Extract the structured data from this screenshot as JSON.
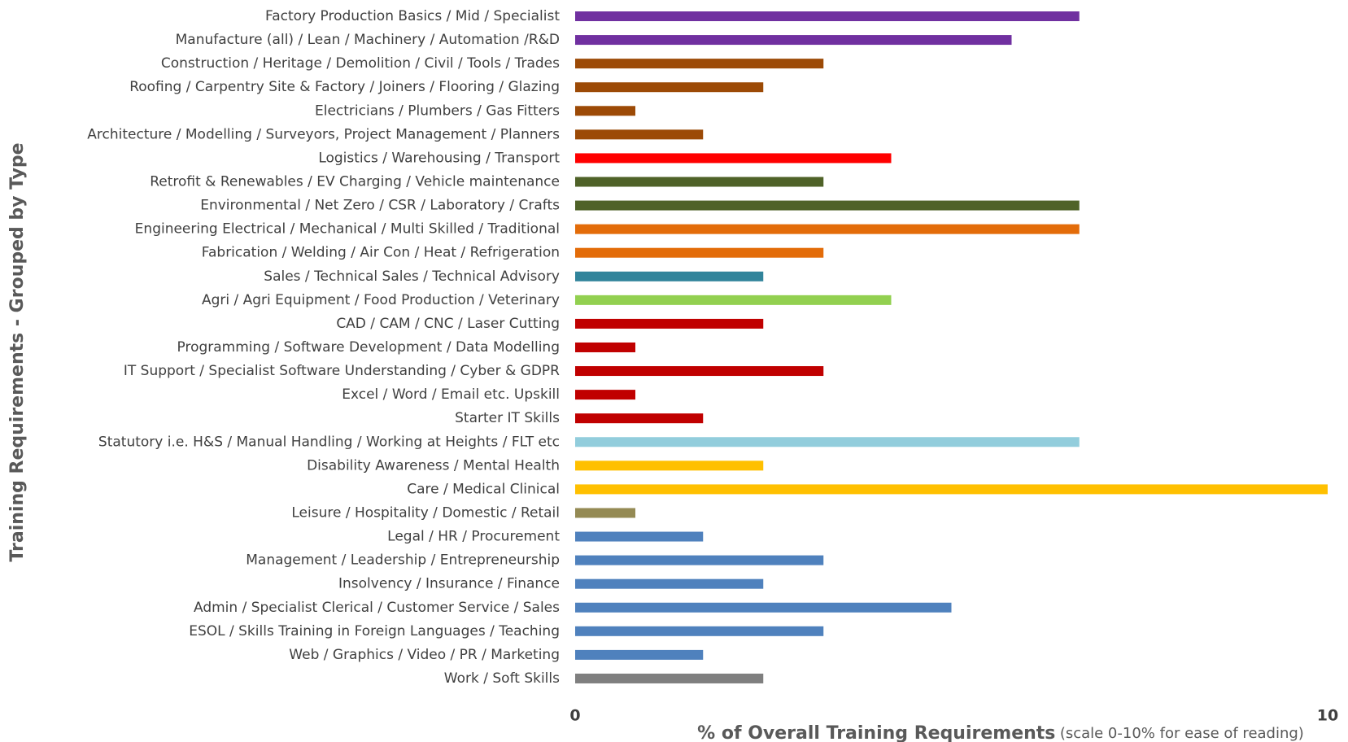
{
  "chart_data": {
    "type": "bar",
    "orientation": "horizontal",
    "xlabel": "% of Overall Training Requirements",
    "xlabel_note": "(scale 0-10% for ease of reading)",
    "ylabel": "Training Requirements - Grouped by Type",
    "categories": [
      "Factory Production Basics / Mid / Specialist",
      "Manufacture (all) / Lean / Machinery / Automation /R&D",
      "Construction / Heritage / Demolition / Civil / Tools / Trades",
      "Roofing / Carpentry Site & Factory / Joiners / Flooring / Glazing",
      "Electricians / Plumbers / Gas Fitters",
      "Architecture / Modelling / Surveyors, Project Management / Planners",
      "Logistics / Warehousing / Transport",
      "Retrofit & Renewables / EV Charging / Vehicle maintenance",
      "Environmental / Net Zero / CSR / Laboratory / Crafts",
      "Engineering Electrical / Mechanical / Multi Skilled / Traditional",
      "Fabrication / Welding / Air Con / Heat / Refrigeration",
      "Sales / Technical Sales / Technical Advisory",
      "Agri / Agri Equipment / Food Production / Veterinary",
      "CAD / CAM / CNC / Laser Cutting",
      "Programming / Software Development / Data Modelling",
      "IT Support / Specialist Software Understanding / Cyber & GDPR",
      "Excel / Word / Email etc. Upskill",
      "Starter IT Skills",
      "Statutory i.e. H&S / Manual Handling / Working at Heights / FLT etc",
      "Disability Awareness / Mental Health",
      "Care / Medical Clinical",
      "Leisure / Hospitality / Domestic / Retail",
      "Legal / HR / Procurement",
      "Management / Leadership / Entrepreneurship",
      "Insolvency / Insurance / Finance",
      "Admin / Specialist Clerical / Customer Service / Sales",
      "ESOL / Skills Training in Foreign Languages / Teaching",
      "Web / Graphics / Video / PR / Marketing",
      "Work / Soft Skills"
    ],
    "values": [
      6.7,
      5.8,
      3.3,
      2.5,
      0.8,
      1.7,
      4.2,
      3.3,
      6.7,
      6.7,
      3.3,
      2.5,
      4.2,
      2.5,
      0.8,
      3.3,
      0.8,
      1.7,
      6.7,
      2.5,
      10,
      0.8,
      1.7,
      3.3,
      2.5,
      5.0,
      3.3,
      1.7,
      2.5
    ],
    "colors": [
      "#7030a0",
      "#7030a0",
      "#9c4a06",
      "#9c4a06",
      "#9c4a06",
      "#9c4a06",
      "#ff0000",
      "#4f6228",
      "#4f6228",
      "#e36c09",
      "#e36c09",
      "#31849b",
      "#92d050",
      "#c00000",
      "#c00000",
      "#c00000",
      "#c00000",
      "#c00000",
      "#92cddc",
      "#ffc000",
      "#ffc000",
      "#948a54",
      "#4f81bd",
      "#4f81bd",
      "#4f81bd",
      "#4f81bd",
      "#4f81bd",
      "#4f81bd",
      "#7f7f7f"
    ],
    "xlim": [
      0,
      10
    ],
    "xticks": [
      0,
      10
    ],
    "grid": false
  }
}
